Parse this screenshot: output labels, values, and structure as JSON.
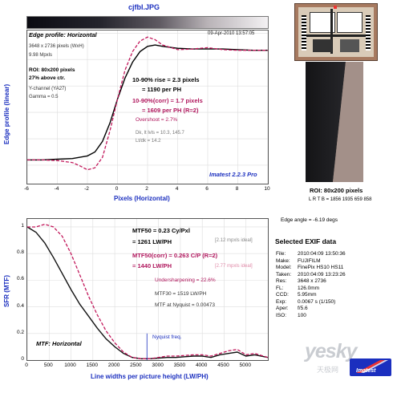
{
  "title": "cjfbl.JPG",
  "edge": {
    "title": "Edge profile: Horizontal",
    "date": "09-Apr-2010 13:57:05",
    "size": "3648 x 2736 pixels (WxH)",
    "mpxls": "9.98 Mpxls",
    "roi": "ROI: 80x200 pixels",
    "above": "27% above ctr.",
    "ychannel": "Y-channel  (YA27)",
    "gamma": "Gamma = 0.5",
    "rise": "10-90% rise = 2.3 pixels",
    "perph": "= 1190 per PH",
    "corr": "10-90%(corr) = 1.7 pixels",
    "corrph": "= 1609 per PH  (R=2)",
    "overshoot": "Overshoot = 2.7%",
    "dk": "Dk, lt lvls = 10.3, 145.7",
    "ltdk": "Lt/dk = 14.2",
    "imatest": "Imatest 2.2.3 Pro"
  },
  "mtf": {
    "mtf50": "MTF50 = 0.23 Cy/Pxl",
    "lwph": "= 1261 LW/PH",
    "ideal1": "[2.12 mpxls ideal]",
    "corr": "MTF50(corr) = 0.263 C/P  (R=2)",
    "corrph": "= 1440 LW/PH",
    "ideal2": "[2.77 mpxls ideal]",
    "under": "Undersharpening = 22.6%",
    "mtf30": "MTF30 = 1519 LW/PH",
    "nyq": "MTF at Nyquist = 0.00473",
    "nyqfreq": "Nyquist freq.",
    "label": "MTF: Horizontal"
  },
  "roi_panel": {
    "roi": "ROI: 80x200 pixels",
    "lrtb": "L R  T B = 1856 1935  659 858",
    "angle": "Edge angle = -6.19 degs"
  },
  "exif": {
    "title": "Selected EXIF data",
    "rows": [
      [
        "File:",
        "2010:04:09 13:50:36"
      ],
      [
        "Make:",
        "FUJIFILM"
      ],
      [
        "Model:",
        "FinePix HS10 HS11"
      ],
      [
        "Taken:",
        "2010:04:09 13:23:26"
      ],
      [
        "Res:",
        "3648 x 2736"
      ],
      [
        "FL:",
        "126.0mm"
      ],
      [
        "CCD:",
        "5.95mm"
      ],
      [
        "Exp:",
        "0.0067 s  (1/150)"
      ],
      [
        "Aper:",
        "f/5.6"
      ],
      [
        "ISO:",
        "100"
      ]
    ]
  },
  "watermark": {
    "text": "yesky",
    "sub": "天极网",
    "brand": "Imatest"
  },
  "colors": {
    "black": "#000000",
    "crimson": "#c2185b",
    "blue": "#1b2fbf",
    "dark": "#111111"
  },
  "chart_data": [
    {
      "type": "line",
      "xlabel": "Pixels (Horizontal)",
      "ylabel": "Edge profile (linear)",
      "xlim": [
        -6,
        10
      ],
      "xticks": [
        -6,
        -4,
        -2,
        0,
        2,
        4,
        6,
        8,
        10
      ],
      "ylim": [
        0,
        1
      ],
      "grid": true,
      "series": [
        {
          "color": "#000000",
          "style": "solid",
          "x": [
            -6,
            -5,
            -4,
            -3,
            -2,
            -1.5,
            -1,
            -0.5,
            0,
            0.5,
            1,
            1.5,
            2,
            2.5,
            3,
            4,
            5,
            6,
            7,
            8,
            9,
            10
          ],
          "y": [
            0.04,
            0.04,
            0.045,
            0.05,
            0.07,
            0.1,
            0.18,
            0.32,
            0.5,
            0.66,
            0.78,
            0.86,
            0.9,
            0.91,
            0.9,
            0.885,
            0.88,
            0.88,
            0.88,
            0.875,
            0.87,
            0.87
          ]
        },
        {
          "color": "#c2185b",
          "style": "dashed",
          "x": [
            -6,
            -5,
            -4,
            -3,
            -2.5,
            -2,
            -1.5,
            -1,
            -0.5,
            0,
            0.5,
            1,
            1.5,
            2,
            2.5,
            3,
            4,
            5,
            6,
            7,
            8,
            9,
            10
          ],
          "y": [
            0.04,
            0.04,
            0.035,
            0.02,
            -0.005,
            -0.035,
            -0.02,
            0.06,
            0.26,
            0.5,
            0.72,
            0.86,
            0.94,
            0.97,
            0.95,
            0.91,
            0.875,
            0.88,
            0.89,
            0.875,
            0.87,
            0.87,
            0.87
          ]
        }
      ]
    },
    {
      "type": "line",
      "xlabel": "Line widths per picture height (LW/PH)",
      "ylabel": "SFR (MTF)",
      "xlim": [
        0,
        5500
      ],
      "xticks": [
        0,
        500,
        1000,
        1500,
        2000,
        2500,
        3000,
        3500,
        4000,
        4500,
        5000
      ],
      "ylim": [
        0,
        1
      ],
      "yticks": [
        0,
        0.2,
        0.4,
        0.6,
        0.8,
        1
      ],
      "grid": true,
      "nyquist": 2736,
      "series": [
        {
          "color": "#111111",
          "style": "solid",
          "x": [
            0,
            200,
            400,
            600,
            800,
            1000,
            1200,
            1400,
            1600,
            1800,
            2000,
            2200,
            2400,
            2600,
            2800,
            3000,
            3200,
            3400,
            3600,
            3800,
            4000,
            4200,
            4400,
            4600,
            4800,
            5000,
            5200,
            5500
          ],
          "y": [
            1,
            0.96,
            0.88,
            0.77,
            0.65,
            0.53,
            0.42,
            0.33,
            0.24,
            0.16,
            0.1,
            0.05,
            0.02,
            0.01,
            0.01,
            0.015,
            0.02,
            0.02,
            0.025,
            0.03,
            0.03,
            0.02,
            0.04,
            0.05,
            0.06,
            0.03,
            0.04,
            0.02
          ]
        },
        {
          "color": "#c2185b",
          "style": "dashed",
          "x": [
            0,
            200,
            400,
            600,
            800,
            1000,
            1200,
            1400,
            1600,
            1800,
            2000,
            2200,
            2400,
            2600,
            2800,
            3000,
            3200,
            3400,
            3600,
            3800,
            4000,
            4200,
            4400,
            4600,
            4800,
            5000,
            5200,
            5500
          ],
          "y": [
            1,
            1.0,
            1.02,
            1.0,
            0.93,
            0.8,
            0.64,
            0.48,
            0.34,
            0.22,
            0.13,
            0.06,
            0.02,
            0.01,
            0.01,
            0.02,
            0.03,
            0.03,
            0.035,
            0.04,
            0.04,
            0.03,
            0.05,
            0.07,
            0.08,
            0.04,
            0.05,
            0.02
          ]
        }
      ]
    }
  ]
}
